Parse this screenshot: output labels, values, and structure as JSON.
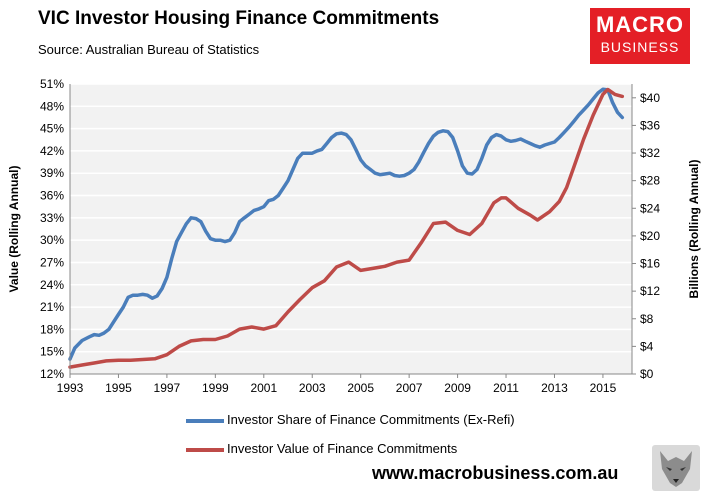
{
  "header": {
    "title": "VIC Investor Housing Finance Commitments",
    "subtitle": "Source: Australian Bureau of Statistics"
  },
  "logo": {
    "line1": "MACRO",
    "line2": "BUSINESS"
  },
  "footer": {
    "website": "www.macrobusiness.com.au"
  },
  "colors": {
    "series1": "#4a7ebb",
    "series2": "#be4b48",
    "plot_bg": "#f2f2f2",
    "grid": "#ffffff",
    "logo_bg": "#e41f26"
  },
  "chart_data": {
    "type": "line",
    "title": "VIC Investor Housing Finance Commitments",
    "y_left_label": "Value (Rolling Annual)",
    "y_right_label": "Billions (Rolling Annual)",
    "x_range": [
      1993,
      2016.2
    ],
    "y_left_range": [
      12,
      51
    ],
    "y_right_range": [
      0,
      42
    ],
    "x_ticks": [
      "1993",
      "1995",
      "1997",
      "1999",
      "2001",
      "2003",
      "2005",
      "2007",
      "2009",
      "2011",
      "2013",
      "2015"
    ],
    "y_left_ticks": [
      "12%",
      "15%",
      "18%",
      "21%",
      "24%",
      "27%",
      "30%",
      "33%",
      "36%",
      "39%",
      "42%",
      "45%",
      "48%",
      "51%"
    ],
    "y_right_ticks": [
      "$0",
      "$4",
      "$8",
      "$12",
      "$16",
      "$20",
      "$24",
      "$28",
      "$32",
      "$36",
      "$40"
    ],
    "grid": true,
    "legend_position": "bottom",
    "series": [
      {
        "name": "Investor Share of Finance Commitments (Ex-Refi)",
        "axis": "left",
        "points": [
          [
            1993.0,
            14.0
          ],
          [
            1993.2,
            15.5
          ],
          [
            1993.5,
            16.5
          ],
          [
            1993.8,
            17.0
          ],
          [
            1994.0,
            17.3
          ],
          [
            1994.2,
            17.2
          ],
          [
            1994.4,
            17.5
          ],
          [
            1994.6,
            18.0
          ],
          [
            1994.8,
            19.0
          ],
          [
            1995.0,
            20.0
          ],
          [
            1995.2,
            21.0
          ],
          [
            1995.4,
            22.3
          ],
          [
            1995.6,
            22.6
          ],
          [
            1995.8,
            22.6
          ],
          [
            1996.0,
            22.7
          ],
          [
            1996.2,
            22.6
          ],
          [
            1996.4,
            22.2
          ],
          [
            1996.6,
            22.5
          ],
          [
            1996.8,
            23.5
          ],
          [
            1997.0,
            25.0
          ],
          [
            1997.2,
            27.5
          ],
          [
            1997.4,
            29.8
          ],
          [
            1997.6,
            31.0
          ],
          [
            1997.8,
            32.2
          ],
          [
            1998.0,
            33.0
          ],
          [
            1998.2,
            32.9
          ],
          [
            1998.4,
            32.5
          ],
          [
            1998.6,
            31.2
          ],
          [
            1998.8,
            30.2
          ],
          [
            1999.0,
            30.0
          ],
          [
            1999.2,
            30.0
          ],
          [
            1999.4,
            29.8
          ],
          [
            1999.6,
            30.0
          ],
          [
            1999.8,
            31.0
          ],
          [
            2000.0,
            32.5
          ],
          [
            2000.2,
            33.0
          ],
          [
            2000.4,
            33.5
          ],
          [
            2000.6,
            34.0
          ],
          [
            2000.8,
            34.2
          ],
          [
            2001.0,
            34.5
          ],
          [
            2001.2,
            35.3
          ],
          [
            2001.4,
            35.5
          ],
          [
            2001.6,
            36.0
          ],
          [
            2001.8,
            37.0
          ],
          [
            2002.0,
            38.0
          ],
          [
            2002.2,
            39.5
          ],
          [
            2002.4,
            41.0
          ],
          [
            2002.6,
            41.7
          ],
          [
            2002.8,
            41.7
          ],
          [
            2003.0,
            41.7
          ],
          [
            2003.2,
            42.0
          ],
          [
            2003.4,
            42.2
          ],
          [
            2003.6,
            43.0
          ],
          [
            2003.8,
            43.8
          ],
          [
            2004.0,
            44.3
          ],
          [
            2004.2,
            44.4
          ],
          [
            2004.4,
            44.2
          ],
          [
            2004.6,
            43.5
          ],
          [
            2004.8,
            42.2
          ],
          [
            2005.0,
            40.8
          ],
          [
            2005.2,
            40.0
          ],
          [
            2005.4,
            39.5
          ],
          [
            2005.6,
            39.0
          ],
          [
            2005.8,
            38.8
          ],
          [
            2006.0,
            38.9
          ],
          [
            2006.2,
            39.0
          ],
          [
            2006.4,
            38.7
          ],
          [
            2006.6,
            38.6
          ],
          [
            2006.8,
            38.7
          ],
          [
            2007.0,
            39.0
          ],
          [
            2007.2,
            39.5
          ],
          [
            2007.4,
            40.5
          ],
          [
            2007.6,
            41.8
          ],
          [
            2007.8,
            43.0
          ],
          [
            2008.0,
            44.0
          ],
          [
            2008.2,
            44.5
          ],
          [
            2008.4,
            44.7
          ],
          [
            2008.6,
            44.6
          ],
          [
            2008.8,
            43.8
          ],
          [
            2009.0,
            42.0
          ],
          [
            2009.2,
            40.0
          ],
          [
            2009.4,
            39.0
          ],
          [
            2009.6,
            38.9
          ],
          [
            2009.8,
            39.5
          ],
          [
            2010.0,
            41.0
          ],
          [
            2010.2,
            42.8
          ],
          [
            2010.4,
            43.8
          ],
          [
            2010.6,
            44.2
          ],
          [
            2010.8,
            44.0
          ],
          [
            2011.0,
            43.5
          ],
          [
            2011.2,
            43.3
          ],
          [
            2011.4,
            43.4
          ],
          [
            2011.6,
            43.6
          ],
          [
            2011.8,
            43.3
          ],
          [
            2012.0,
            43.0
          ],
          [
            2012.2,
            42.7
          ],
          [
            2012.4,
            42.5
          ],
          [
            2012.6,
            42.8
          ],
          [
            2012.8,
            43.0
          ],
          [
            2013.0,
            43.2
          ],
          [
            2013.2,
            43.8
          ],
          [
            2013.4,
            44.5
          ],
          [
            2013.6,
            45.2
          ],
          [
            2013.8,
            46.0
          ],
          [
            2014.0,
            46.8
          ],
          [
            2014.2,
            47.5
          ],
          [
            2014.4,
            48.2
          ],
          [
            2014.6,
            49.0
          ],
          [
            2014.8,
            49.8
          ],
          [
            2015.0,
            50.3
          ],
          [
            2015.2,
            50.2
          ],
          [
            2015.4,
            48.5
          ],
          [
            2015.6,
            47.2
          ],
          [
            2015.8,
            46.5
          ]
        ]
      },
      {
        "name": "Investor Value of Finance Commitments",
        "axis": "right",
        "points": [
          [
            1993.0,
            1.0
          ],
          [
            1993.5,
            1.3
          ],
          [
            1994.0,
            1.6
          ],
          [
            1994.5,
            1.9
          ],
          [
            1995.0,
            2.0
          ],
          [
            1995.5,
            2.0
          ],
          [
            1996.0,
            2.1
          ],
          [
            1996.5,
            2.2
          ],
          [
            1997.0,
            2.8
          ],
          [
            1997.5,
            4.0
          ],
          [
            1998.0,
            4.8
          ],
          [
            1998.5,
            5.0
          ],
          [
            1999.0,
            5.0
          ],
          [
            1999.5,
            5.5
          ],
          [
            2000.0,
            6.5
          ],
          [
            2000.5,
            6.8
          ],
          [
            2001.0,
            6.5
          ],
          [
            2001.5,
            7.0
          ],
          [
            2002.0,
            9.0
          ],
          [
            2002.5,
            10.8
          ],
          [
            2003.0,
            12.5
          ],
          [
            2003.5,
            13.5
          ],
          [
            2004.0,
            15.5
          ],
          [
            2004.5,
            16.2
          ],
          [
            2005.0,
            15.0
          ],
          [
            2005.5,
            15.3
          ],
          [
            2006.0,
            15.6
          ],
          [
            2006.5,
            16.2
          ],
          [
            2007.0,
            16.5
          ],
          [
            2007.5,
            19.0
          ],
          [
            2008.0,
            21.8
          ],
          [
            2008.5,
            22.0
          ],
          [
            2009.0,
            20.8
          ],
          [
            2009.5,
            20.2
          ],
          [
            2010.0,
            21.8
          ],
          [
            2010.5,
            24.8
          ],
          [
            2010.8,
            25.5
          ],
          [
            2011.0,
            25.5
          ],
          [
            2011.5,
            24.0
          ],
          [
            2012.0,
            23.0
          ],
          [
            2012.3,
            22.3
          ],
          [
            2012.8,
            23.5
          ],
          [
            2013.2,
            25.0
          ],
          [
            2013.5,
            27.0
          ],
          [
            2013.8,
            30.0
          ],
          [
            2014.2,
            34.0
          ],
          [
            2014.6,
            37.5
          ],
          [
            2015.0,
            40.5
          ],
          [
            2015.2,
            41.2
          ],
          [
            2015.5,
            40.5
          ],
          [
            2015.8,
            40.2
          ]
        ]
      }
    ]
  }
}
